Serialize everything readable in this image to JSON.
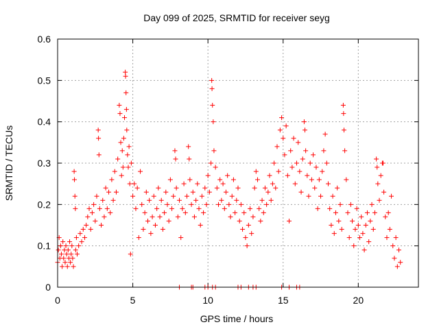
{
  "chart_data": {
    "type": "scatter",
    "title": "Day 099 of 2025, SRMTID for receiver seyg",
    "xlabel": "GPS time / hours",
    "ylabel": "SRMTID / TECUs",
    "xlim": [
      0,
      24
    ],
    "ylim": [
      0,
      0.6
    ],
    "xticks": [
      0,
      5,
      10,
      15,
      20
    ],
    "xtick_labels": [
      "0",
      "5",
      "10",
      "15",
      "20"
    ],
    "yticks": [
      0,
      0.1,
      0.2,
      0.3,
      0.4,
      0.5,
      0.6
    ],
    "ytick_labels": [
      "0",
      "0.1",
      "0.2",
      "0.3",
      "0.4",
      "0.5",
      "0.6"
    ],
    "grid": true,
    "marker": "plus",
    "series": [
      {
        "name": "SRMTID",
        "color": "#ff0000",
        "points": [
          [
            0.0,
            0.06
          ],
          [
            0.05,
            0.09
          ],
          [
            0.1,
            0.12
          ],
          [
            0.15,
            0.07
          ],
          [
            0.2,
            0.1
          ],
          [
            0.25,
            0.08
          ],
          [
            0.3,
            0.05
          ],
          [
            0.35,
            0.11
          ],
          [
            0.4,
            0.07
          ],
          [
            0.45,
            0.09
          ],
          [
            0.5,
            0.06
          ],
          [
            0.55,
            0.1
          ],
          [
            0.6,
            0.08
          ],
          [
            0.65,
            0.05
          ],
          [
            0.7,
            0.09
          ],
          [
            0.75,
            0.07
          ],
          [
            0.8,
            0.11
          ],
          [
            0.85,
            0.06
          ],
          [
            0.9,
            0.08
          ],
          [
            0.95,
            0.1
          ],
          [
            1.0,
            0.07
          ],
          [
            1.05,
            0.05
          ],
          [
            1.1,
            0.28
          ],
          [
            1.12,
            0.26
          ],
          [
            1.15,
            0.22
          ],
          [
            1.18,
            0.19
          ],
          [
            1.2,
            0.09
          ],
          [
            1.25,
            0.12
          ],
          [
            1.3,
            0.08
          ],
          [
            1.4,
            0.1
          ],
          [
            1.5,
            0.13
          ],
          [
            1.6,
            0.11
          ],
          [
            1.7,
            0.14
          ],
          [
            1.8,
            0.12
          ],
          [
            1.9,
            0.15
          ],
          [
            2.0,
            0.17
          ],
          [
            2.1,
            0.19
          ],
          [
            2.2,
            0.14
          ],
          [
            2.3,
            0.18
          ],
          [
            2.4,
            0.2
          ],
          [
            2.5,
            0.16
          ],
          [
            2.6,
            0.22
          ],
          [
            2.7,
            0.38
          ],
          [
            2.72,
            0.36
          ],
          [
            2.75,
            0.32
          ],
          [
            2.8,
            0.19
          ],
          [
            2.9,
            0.15
          ],
          [
            3.0,
            0.21
          ],
          [
            3.1,
            0.17
          ],
          [
            3.2,
            0.24
          ],
          [
            3.3,
            0.19
          ],
          [
            3.4,
            0.23
          ],
          [
            3.5,
            0.18
          ],
          [
            3.6,
            0.26
          ],
          [
            3.7,
            0.21
          ],
          [
            3.8,
            0.28
          ],
          [
            3.9,
            0.23
          ],
          [
            4.0,
            0.31
          ],
          [
            4.1,
            0.44
          ],
          [
            4.15,
            0.42
          ],
          [
            4.2,
            0.35
          ],
          [
            4.25,
            0.27
          ],
          [
            4.3,
            0.33
          ],
          [
            4.35,
            0.29
          ],
          [
            4.4,
            0.36
          ],
          [
            4.45,
            0.41
          ],
          [
            4.5,
            0.52
          ],
          [
            4.52,
            0.51
          ],
          [
            4.55,
            0.47
          ],
          [
            4.58,
            0.43
          ],
          [
            4.6,
            0.38
          ],
          [
            4.65,
            0.32
          ],
          [
            4.7,
            0.29
          ],
          [
            4.75,
            0.34
          ],
          [
            4.8,
            0.25
          ],
          [
            4.85,
            0.08
          ],
          [
            4.9,
            0.3
          ],
          [
            5.0,
            0.22
          ],
          [
            5.1,
            0.25
          ],
          [
            5.2,
            0.19
          ],
          [
            5.3,
            0.24
          ],
          [
            5.4,
            0.12
          ],
          [
            5.5,
            0.28
          ],
          [
            5.6,
            0.2
          ],
          [
            5.7,
            0.14
          ],
          [
            5.8,
            0.18
          ],
          [
            5.9,
            0.23
          ],
          [
            6.0,
            0.16
          ],
          [
            6.1,
            0.21
          ],
          [
            6.2,
            0.13
          ],
          [
            6.3,
            0.17
          ],
          [
            6.4,
            0.22
          ],
          [
            6.5,
            0.15
          ],
          [
            6.6,
            0.19
          ],
          [
            6.7,
            0.24
          ],
          [
            6.8,
            0.17
          ],
          [
            6.9,
            0.21
          ],
          [
            7.0,
            0.14
          ],
          [
            7.1,
            0.18
          ],
          [
            7.2,
            0.23
          ],
          [
            7.3,
            0.2
          ],
          [
            7.4,
            0.16
          ],
          [
            7.5,
            0.26
          ],
          [
            7.6,
            0.19
          ],
          [
            7.7,
            0.22
          ],
          [
            7.8,
            0.33
          ],
          [
            7.85,
            0.31
          ],
          [
            7.9,
            0.24
          ],
          [
            8.0,
            0.17
          ],
          [
            8.1,
            0.21
          ],
          [
            8.2,
            0.12
          ],
          [
            8.3,
            0.19
          ],
          [
            8.4,
            0.25
          ],
          [
            8.5,
            0.18
          ],
          [
            8.6,
            0.22
          ],
          [
            8.7,
            0.34
          ],
          [
            8.75,
            0.31
          ],
          [
            8.8,
            0.26
          ],
          [
            8.9,
            0.2
          ],
          [
            9.0,
            0.23
          ],
          [
            9.1,
            0.17
          ],
          [
            9.2,
            0.21
          ],
          [
            9.3,
            0.25
          ],
          [
            9.4,
            0.19
          ],
          [
            9.5,
            0.15
          ],
          [
            9.6,
            0.22
          ],
          [
            9.7,
            0.18
          ],
          [
            9.8,
            0.24
          ],
          [
            9.9,
            0.2
          ],
          [
            10.0,
            0.27
          ],
          [
            10.1,
            0.23
          ],
          [
            10.2,
            0.3
          ],
          [
            10.25,
            0.5
          ],
          [
            10.27,
            0.48
          ],
          [
            10.3,
            0.44
          ],
          [
            10.35,
            0.4
          ],
          [
            10.4,
            0.33
          ],
          [
            10.5,
            0.29
          ],
          [
            10.6,
            0.24
          ],
          [
            10.7,
            0.2
          ],
          [
            10.8,
            0.26
          ],
          [
            10.9,
            0.21
          ],
          [
            11.0,
            0.25
          ],
          [
            11.1,
            0.19
          ],
          [
            11.2,
            0.23
          ],
          [
            11.3,
            0.27
          ],
          [
            11.4,
            0.2
          ],
          [
            11.5,
            0.17
          ],
          [
            11.6,
            0.22
          ],
          [
            11.7,
            0.26
          ],
          [
            11.8,
            0.18
          ],
          [
            11.9,
            0.21
          ],
          [
            12.0,
            0.24
          ],
          [
            12.1,
            0.16
          ],
          [
            12.2,
            0.2
          ],
          [
            12.3,
            0.14
          ],
          [
            12.4,
            0.18
          ],
          [
            12.5,
            0.12
          ],
          [
            12.6,
            0.1
          ],
          [
            12.7,
            0.15
          ],
          [
            12.8,
            0.19
          ],
          [
            12.9,
            0.13
          ],
          [
            13.0,
            0.17
          ],
          [
            13.1,
            0.24
          ],
          [
            13.2,
            0.28
          ],
          [
            13.3,
            0.26
          ],
          [
            13.4,
            0.19
          ],
          [
            13.5,
            0.16
          ],
          [
            13.6,
            0.21
          ],
          [
            13.7,
            0.18
          ],
          [
            13.8,
            0.24
          ],
          [
            13.9,
            0.2
          ],
          [
            14.0,
            0.23
          ],
          [
            14.1,
            0.27
          ],
          [
            14.2,
            0.21
          ],
          [
            14.3,
            0.25
          ],
          [
            14.4,
            0.3
          ],
          [
            14.5,
            0.24
          ],
          [
            14.6,
            0.34
          ],
          [
            14.7,
            0.28
          ],
          [
            14.8,
            0.38
          ],
          [
            14.9,
            0.41
          ],
          [
            15.0,
            0.36
          ],
          [
            15.1,
            0.32
          ],
          [
            15.2,
            0.39
          ],
          [
            15.3,
            0.27
          ],
          [
            15.4,
            0.16
          ],
          [
            15.5,
            0.33
          ],
          [
            15.6,
            0.29
          ],
          [
            15.7,
            0.36
          ],
          [
            15.8,
            0.25
          ],
          [
            15.9,
            0.3
          ],
          [
            16.0,
            0.35
          ],
          [
            16.1,
            0.28
          ],
          [
            16.2,
            0.23
          ],
          [
            16.3,
            0.31
          ],
          [
            16.4,
            0.4
          ],
          [
            16.45,
            0.38
          ],
          [
            16.5,
            0.33
          ],
          [
            16.6,
            0.27
          ],
          [
            16.7,
            0.22
          ],
          [
            16.8,
            0.3
          ],
          [
            16.9,
            0.26
          ],
          [
            17.0,
            0.32
          ],
          [
            17.1,
            0.24
          ],
          [
            17.2,
            0.29
          ],
          [
            17.3,
            0.19
          ],
          [
            17.4,
            0.26
          ],
          [
            17.5,
            0.22
          ],
          [
            17.6,
            0.28
          ],
          [
            17.7,
            0.33
          ],
          [
            17.8,
            0.37
          ],
          [
            17.9,
            0.3
          ],
          [
            18.0,
            0.25
          ],
          [
            18.1,
            0.19
          ],
          [
            18.2,
            0.15
          ],
          [
            18.3,
            0.22
          ],
          [
            18.4,
            0.13
          ],
          [
            18.5,
            0.18
          ],
          [
            18.6,
            0.24
          ],
          [
            18.7,
            0.16
          ],
          [
            18.8,
            0.2
          ],
          [
            18.9,
            0.14
          ],
          [
            19.0,
            0.44
          ],
          [
            19.02,
            0.42
          ],
          [
            19.05,
            0.38
          ],
          [
            19.1,
            0.33
          ],
          [
            19.2,
            0.26
          ],
          [
            19.3,
            0.18
          ],
          [
            19.4,
            0.12
          ],
          [
            19.5,
            0.2
          ],
          [
            19.6,
            0.16
          ],
          [
            19.7,
            0.1
          ],
          [
            19.8,
            0.14
          ],
          [
            19.9,
            0.19
          ],
          [
            20.0,
            0.15
          ],
          [
            20.1,
            0.12
          ],
          [
            20.2,
            0.17
          ],
          [
            20.3,
            0.13
          ],
          [
            20.4,
            0.09
          ],
          [
            20.5,
            0.15
          ],
          [
            20.6,
            0.18
          ],
          [
            20.7,
            0.11
          ],
          [
            20.8,
            0.16
          ],
          [
            20.9,
            0.2
          ],
          [
            21.0,
            0.14
          ],
          [
            21.1,
            0.18
          ],
          [
            21.2,
            0.31
          ],
          [
            21.25,
            0.29
          ],
          [
            21.3,
            0.25
          ],
          [
            21.4,
            0.21
          ],
          [
            21.5,
            0.27
          ],
          [
            21.6,
            0.3
          ],
          [
            21.65,
            0.3
          ],
          [
            21.7,
            0.23
          ],
          [
            21.8,
            0.17
          ],
          [
            21.9,
            0.12
          ],
          [
            22.0,
            0.18
          ],
          [
            22.1,
            0.14
          ],
          [
            22.2,
            0.22
          ],
          [
            22.3,
            0.1
          ],
          [
            22.4,
            0.07
          ],
          [
            22.5,
            0.12
          ],
          [
            22.6,
            0.05
          ],
          [
            22.7,
            0.09
          ],
          [
            22.8,
            0.06
          ]
        ]
      }
    ],
    "zero_marks_x": [
      8.1,
      8.9,
      9.0,
      9.8,
      10.0,
      10.3,
      10.5,
      12.0,
      12.2,
      12.7,
      13.0,
      13.2,
      14.9,
      15.4,
      15.9,
      16.1
    ]
  }
}
